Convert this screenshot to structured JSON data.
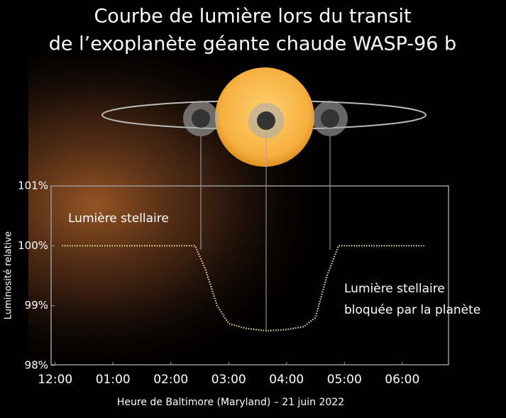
{
  "chart_data": {
    "type": "line",
    "title": [
      "Courbe de lumière lors du transit",
      "de l’exoplanète géante chaude WASP-96 b"
    ],
    "y_label": "Luminosité relative",
    "x_label": "Heure de Baltimore (Maryland) – 21 juin 2022",
    "annotations": [
      "Lumière stellaire",
      "Lumière stellaire",
      "bloquée par la planète"
    ],
    "x": [
      0.12,
      1,
      2,
      2.42,
      2.6,
      2.8,
      3.0,
      3.3,
      3.65,
      4.0,
      4.3,
      4.5,
      4.7,
      4.9,
      5.5,
      6.38
    ],
    "values": [
      100,
      100,
      100,
      100,
      99.6,
      99.0,
      98.7,
      98.62,
      98.58,
      98.6,
      98.65,
      98.8,
      99.5,
      100,
      100,
      100
    ],
    "color": "#e6dca0",
    "xlim": [
      -0.07,
      6.8
    ],
    "xticks": [
      {
        "value": 0,
        "label": "12:00"
      },
      {
        "value": 1,
        "label": "01:00"
      },
      {
        "value": 2,
        "label": "02:00"
      },
      {
        "value": 3,
        "label": "03:00"
      },
      {
        "value": 4,
        "label": "04:00"
      },
      {
        "value": 5,
        "label": "05:00"
      },
      {
        "value": 6,
        "label": "06:00"
      }
    ],
    "ylim": [
      98,
      101
    ],
    "yticks": [
      {
        "value": 98,
        "label": "98%"
      },
      {
        "value": 99,
        "label": "99%"
      },
      {
        "value": 100,
        "label": "100%"
      },
      {
        "value": 101,
        "label": "101%"
      }
    ],
    "grid": false
  }
}
